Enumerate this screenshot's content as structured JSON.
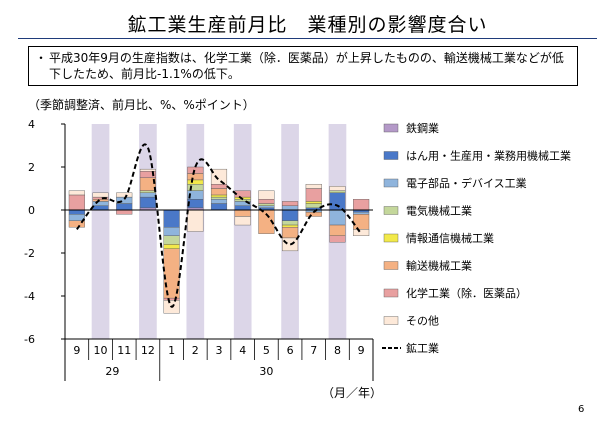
{
  "slide": {
    "title": "鉱工業生産前月比　業種別の影響度合い",
    "note_bullet": "・",
    "note": "平成30年9月の生産指数は、化学工業（除．医薬品）が上昇したものの、輸送機械工業などが低下したため、前月比-1.1%の低下。",
    "unit_label": "（季節調整済、前月比、%、%ポイント）",
    "period_label": "（月／年）",
    "page_number": "6"
  },
  "colors": {
    "title_rule": "#1f3b7a",
    "band": "#dcd6e8"
  },
  "chart_data": {
    "type": "bar",
    "stacked": true,
    "title": "",
    "xlabel": "（月／年）",
    "ylabel": "（季節調整済、前月比、%、%ポイント）",
    "ylim": [
      -6,
      4
    ],
    "yticks": [
      "4",
      "2",
      "0",
      "-2",
      "-4",
      "-6"
    ],
    "categories": [
      "9",
      "10",
      "11",
      "12",
      "1",
      "2",
      "3",
      "4",
      "5",
      "6",
      "7",
      "8",
      "9"
    ],
    "year_groups": [
      {
        "label": "29",
        "start": 0,
        "end": 3
      },
      {
        "label": "30",
        "start": 4,
        "end": 12
      }
    ],
    "shaded_columns": [
      1,
      3,
      5,
      7,
      9,
      11
    ],
    "series": [
      {
        "name": "鉄鋼業",
        "color": "#b499c8",
        "values": [
          0.0,
          0.0,
          0.0,
          0.1,
          0.0,
          0.1,
          0.0,
          0.0,
          0.0,
          0.0,
          0.0,
          0.0,
          0.0
        ]
      },
      {
        "name": "はん用・生産用・業務用機械工業",
        "color": "#4a78c8",
        "values": [
          -0.2,
          0.2,
          0.3,
          0.5,
          -0.8,
          0.4,
          0.3,
          0.2,
          0.1,
          -0.5,
          0.1,
          0.8,
          -0.1
        ]
      },
      {
        "name": "電子部品・デバイス工業",
        "color": "#8fb4dc",
        "values": [
          -0.3,
          0.2,
          0.3,
          0.2,
          -0.4,
          0.4,
          0.2,
          0.2,
          0.1,
          0.2,
          -0.1,
          -0.7,
          -0.1
        ]
      },
      {
        "name": "電気機械工業",
        "color": "#c4d79b",
        "values": [
          0.0,
          0.0,
          0.0,
          0.1,
          -0.4,
          0.3,
          0.1,
          0.1,
          0.1,
          -0.2,
          0.2,
          0.1,
          0.0
        ]
      },
      {
        "name": "情報通信機械工業",
        "color": "#f2e94a",
        "values": [
          0.0,
          0.0,
          0.0,
          0.0,
          -0.2,
          0.2,
          0.1,
          0.1,
          0.0,
          -0.1,
          0.1,
          0.0,
          0.0
        ]
      },
      {
        "name": "輸送機械工業",
        "color": "#f4b183",
        "values": [
          -0.3,
          0.1,
          0.0,
          0.6,
          -2.3,
          0.3,
          0.3,
          -0.3,
          -1.1,
          -0.5,
          -0.2,
          -0.5,
          -0.7
        ]
      },
      {
        "name": "化学工業（除．医薬品）",
        "color": "#e8a0a0",
        "values": [
          0.7,
          0.1,
          -0.2,
          0.3,
          -0.1,
          0.3,
          0.2,
          0.3,
          0.2,
          0.2,
          0.6,
          -0.3,
          0.5
        ]
      },
      {
        "name": "その他",
        "color": "#fde9d9",
        "values": [
          0.2,
          0.2,
          0.2,
          0.1,
          -0.6,
          -1.0,
          0.7,
          -0.4,
          0.4,
          -0.6,
          0.2,
          0.2,
          -0.3
        ]
      }
    ],
    "line": {
      "name": "鉱工業",
      "color": "#000000",
      "values": [
        -0.9,
        0.5,
        0.5,
        2.9,
        -4.5,
        2.0,
        1.4,
        0.5,
        -0.2,
        -1.6,
        -0.1,
        0.2,
        -1.1
      ]
    }
  }
}
